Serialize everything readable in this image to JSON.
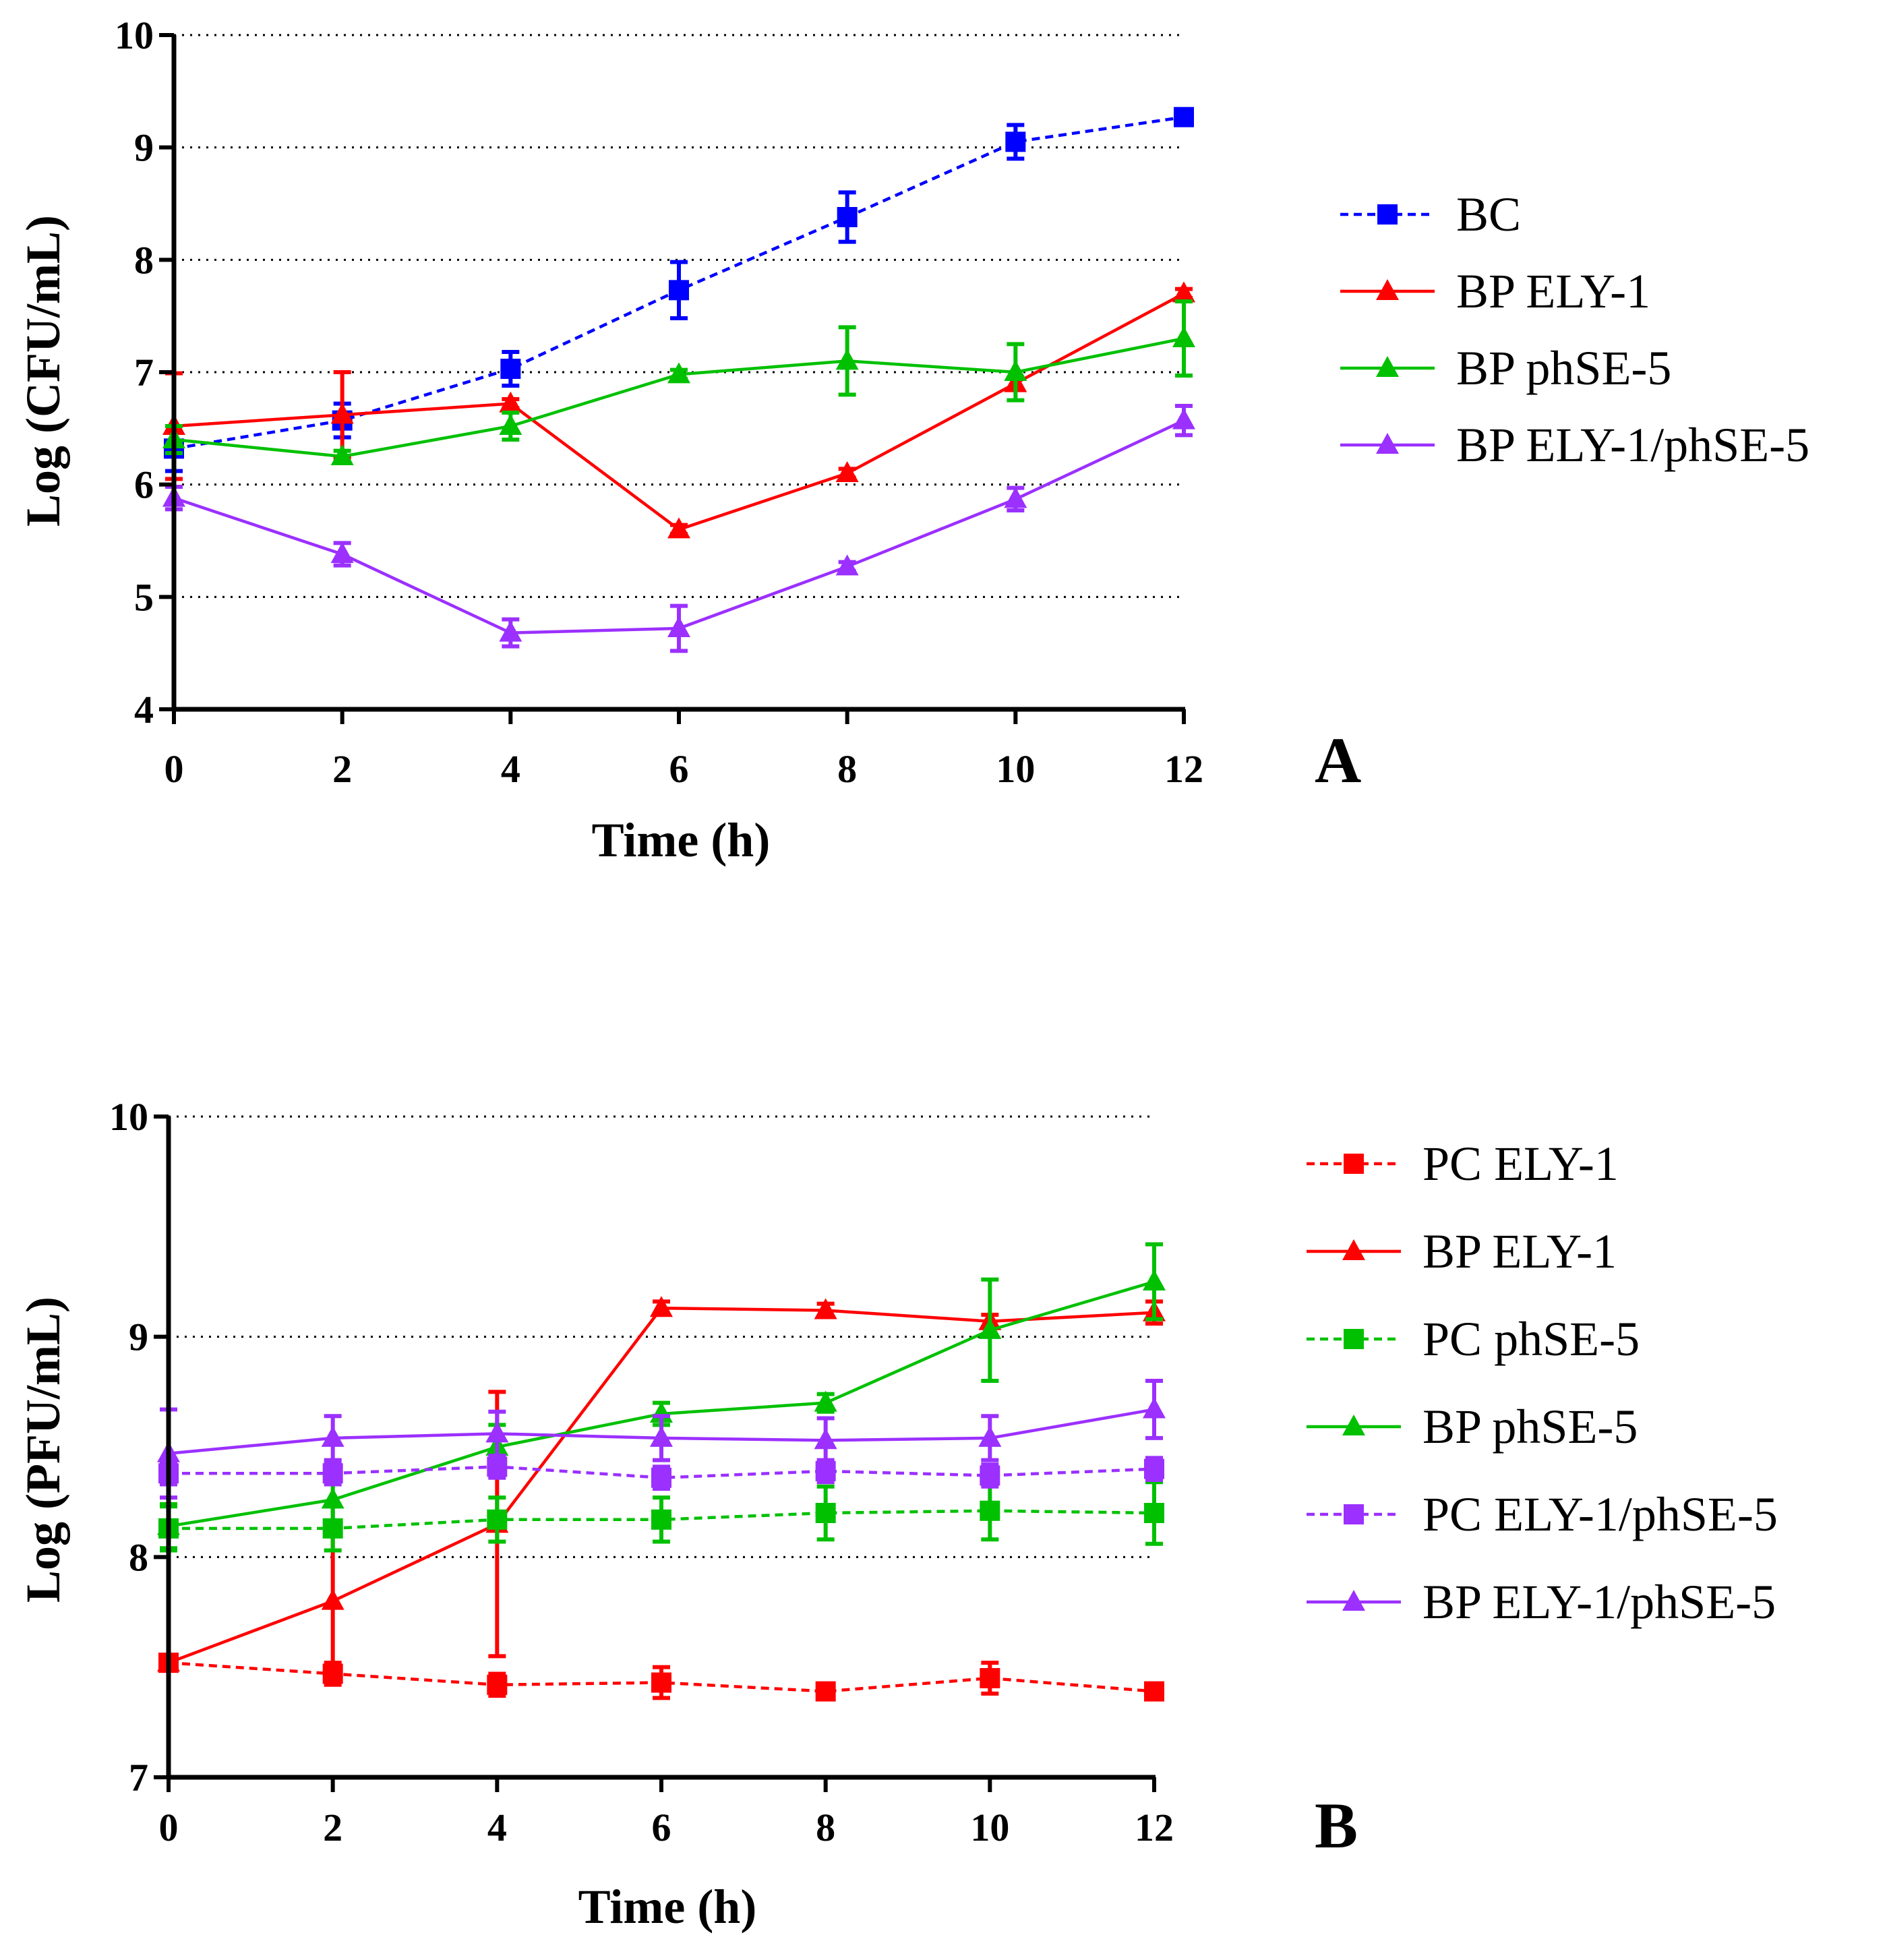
{
  "chart_data": [
    {
      "type": "line",
      "panel_label": "A",
      "xlabel": "Time (h)",
      "ylabel": "Log (CFU/mL)",
      "xlim": [
        0,
        12
      ],
      "ylim": [
        4,
        10
      ],
      "xticks": [
        0,
        2,
        4,
        6,
        8,
        10,
        12
      ],
      "yticks": [
        4,
        5,
        6,
        7,
        8,
        9,
        10
      ],
      "grid": "horizontal dotted",
      "legend_position": "right",
      "x": [
        0,
        2,
        4,
        6,
        8,
        10,
        12
      ],
      "series": [
        {
          "name": "BC",
          "color": "#0000ff",
          "dash": true,
          "marker": "square",
          "values": [
            6.32,
            6.57,
            7.03,
            7.73,
            8.38,
            9.05,
            9.27
          ],
          "errors": [
            0.2,
            0.15,
            0.15,
            0.25,
            0.22,
            0.15,
            0.05
          ]
        },
        {
          "name": "BP ELY-1",
          "color": "#ff0000",
          "dash": false,
          "marker": "triangle",
          "values": [
            6.52,
            6.62,
            6.72,
            5.6,
            6.1,
            6.9,
            7.7
          ],
          "errors": [
            0.47,
            0.38,
            0.04,
            0.04,
            0.04,
            0.05,
            0.04
          ]
        },
        {
          "name": "BP phSE-5",
          "color": "#00c000",
          "dash": false,
          "marker": "triangle",
          "values": [
            6.4,
            6.25,
            6.52,
            6.98,
            7.1,
            7.0,
            7.3
          ],
          "errors": [
            0.12,
            0.05,
            0.12,
            0.04,
            0.3,
            0.25,
            0.33
          ]
        },
        {
          "name": "BP ELY-1/phSE-5",
          "color": "#9b30ff",
          "dash": false,
          "marker": "triangle",
          "values": [
            5.88,
            5.38,
            4.68,
            4.72,
            5.27,
            5.87,
            6.57
          ],
          "errors": [
            0.1,
            0.1,
            0.12,
            0.2,
            0.04,
            0.1,
            0.13
          ]
        }
      ]
    },
    {
      "type": "line",
      "panel_label": "B",
      "xlabel": "Time (h)",
      "ylabel": "Log (PFU/mL)",
      "xlim": [
        0,
        12
      ],
      "ylim": [
        7,
        10
      ],
      "xticks": [
        0,
        2,
        4,
        6,
        8,
        10,
        12
      ],
      "yticks": [
        7,
        8,
        9,
        10
      ],
      "grid": "horizontal dotted",
      "legend_position": "right",
      "x": [
        0,
        2,
        4,
        6,
        8,
        10,
        12
      ],
      "series": [
        {
          "name": "PC ELY-1",
          "color": "#ff0000",
          "dash": true,
          "marker": "square",
          "values": [
            7.52,
            7.47,
            7.42,
            7.43,
            7.39,
            7.45,
            7.39
          ],
          "errors": [
            0.03,
            0.05,
            0.05,
            0.07,
            0.03,
            0.07,
            0.03
          ]
        },
        {
          "name": "BP ELY-1",
          "color": "#ff0000",
          "dash": false,
          "marker": "triangle",
          "values": [
            7.52,
            7.8,
            8.15,
            9.13,
            9.12,
            9.07,
            9.11
          ],
          "errors": [
            0.03,
            0.3,
            0.6,
            0.03,
            0.03,
            0.03,
            0.05
          ]
        },
        {
          "name": "PC phSE-5",
          "color": "#00c000",
          "dash": true,
          "marker": "square",
          "values": [
            8.13,
            8.13,
            8.17,
            8.17,
            8.2,
            8.21,
            8.2
          ],
          "errors": [
            0.1,
            0.1,
            0.1,
            0.1,
            0.12,
            0.13,
            0.14
          ]
        },
        {
          "name": "BP phSE-5",
          "color": "#00c000",
          "dash": false,
          "marker": "triangle",
          "values": [
            8.14,
            8.26,
            8.5,
            8.65,
            8.7,
            9.03,
            9.25
          ],
          "errors": [
            0.1,
            0.1,
            0.1,
            0.05,
            0.04,
            0.23,
            0.17
          ]
        },
        {
          "name": "PC ELY-1/phSE-5",
          "color": "#9b30ff",
          "dash": true,
          "marker": "square",
          "values": [
            8.38,
            8.38,
            8.41,
            8.36,
            8.39,
            8.37,
            8.4
          ],
          "errors": [
            0.05,
            0.05,
            0.05,
            0.05,
            0.05,
            0.05,
            0.05
          ]
        },
        {
          "name": "BP ELY-1/phSE-5",
          "color": "#9b30ff",
          "dash": false,
          "marker": "triangle",
          "values": [
            8.47,
            8.54,
            8.56,
            8.54,
            8.53,
            8.54,
            8.67
          ],
          "errors": [
            0.2,
            0.1,
            0.1,
            0.1,
            0.1,
            0.1,
            0.13
          ]
        }
      ]
    }
  ]
}
